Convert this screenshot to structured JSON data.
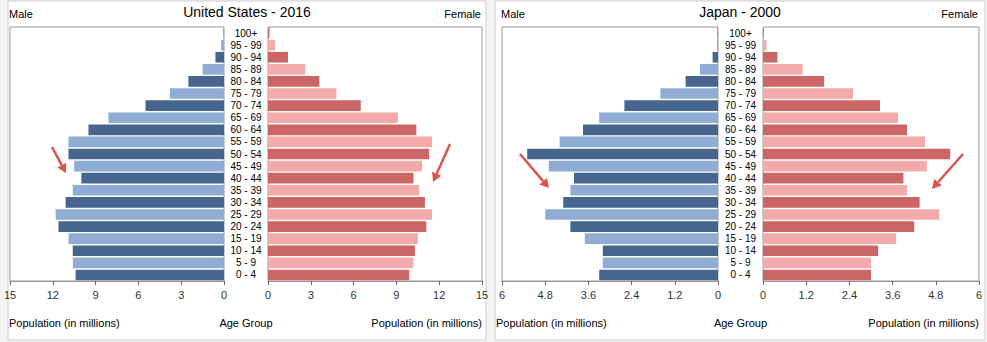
{
  "chart_data": [
    {
      "type": "bar",
      "orientation": "horizontal",
      "title": "United States - 2016",
      "x_label": "Population (in millions)",
      "y_label": "Age Group",
      "categories": [
        "0 - 4",
        "5 - 9",
        "10 - 14",
        "15 - 19",
        "20 - 24",
        "25 - 29",
        "30 - 34",
        "35 - 39",
        "40 - 44",
        "45 - 49",
        "50 - 54",
        "55 - 59",
        "60 - 64",
        "65 - 69",
        "70 - 74",
        "75 - 79",
        "80 - 84",
        "85 - 89",
        "90 - 94",
        "95 - 99",
        "100+"
      ],
      "series": [
        {
          "name": "Male",
          "colors": [
            "#466690",
            "#8fadd4",
            "#466690",
            "#8fadd4",
            "#466690",
            "#8fadd4",
            "#466690",
            "#8fadd4",
            "#466690",
            "#8fadd4",
            "#466690",
            "#8fadd4",
            "#466690",
            "#8fadd4",
            "#466690",
            "#8fadd4",
            "#466690",
            "#8fadd4",
            "#466690",
            "#8fadd4",
            "#466690"
          ],
          "values": [
            10.4,
            10.6,
            10.6,
            10.9,
            11.6,
            11.8,
            11.1,
            10.6,
            10.0,
            10.5,
            10.9,
            10.9,
            9.5,
            8.1,
            5.5,
            3.8,
            2.5,
            1.5,
            0.6,
            0.2,
            0.02
          ]
        },
        {
          "name": "Female",
          "colors": [
            "#cc6666",
            "#f2aaaa",
            "#cc6666",
            "#f2aaaa",
            "#cc6666",
            "#f2aaaa",
            "#cc6666",
            "#f2aaaa",
            "#cc6666",
            "#f2aaaa",
            "#cc6666",
            "#f2aaaa",
            "#cc6666",
            "#f2aaaa",
            "#cc6666",
            "#f2aaaa",
            "#cc6666",
            "#f2aaaa",
            "#cc6666",
            "#f2aaaa",
            "#cc6666"
          ],
          "values": [
            9.9,
            10.2,
            10.3,
            10.5,
            11.1,
            11.5,
            11.0,
            10.6,
            10.2,
            10.8,
            11.3,
            11.5,
            10.4,
            9.1,
            6.5,
            4.8,
            3.6,
            2.6,
            1.4,
            0.5,
            0.1
          ]
        }
      ],
      "xlim": [
        0,
        15
      ],
      "xticks": [
        0,
        3,
        6,
        9,
        12,
        15
      ],
      "grid": false
    },
    {
      "type": "bar",
      "orientation": "horizontal",
      "title": "Japan - 2000",
      "x_label": "Population (in millions)",
      "y_label": "Age Group",
      "categories": [
        "0 - 4",
        "5 - 9",
        "10 - 14",
        "15 - 19",
        "20 - 24",
        "25 - 29",
        "30 - 34",
        "35 - 39",
        "40 - 44",
        "45 - 49",
        "50 - 54",
        "55 - 59",
        "60 - 64",
        "65 - 69",
        "70 - 74",
        "75 - 79",
        "80 - 84",
        "85 - 89",
        "90 - 94",
        "95 - 99",
        "100+"
      ],
      "series": [
        {
          "name": "Male",
          "colors": [
            "#466690",
            "#8fadd4",
            "#466690",
            "#8fadd4",
            "#466690",
            "#8fadd4",
            "#466690",
            "#8fadd4",
            "#466690",
            "#8fadd4",
            "#466690",
            "#8fadd4",
            "#466690",
            "#8fadd4",
            "#466690",
            "#8fadd4",
            "#466690",
            "#8fadd4",
            "#466690",
            "#8fadd4",
            "#466690"
          ],
          "values": [
            3.3,
            3.2,
            3.2,
            3.7,
            4.1,
            4.8,
            4.3,
            4.1,
            4.0,
            4.7,
            5.3,
            4.4,
            3.75,
            3.3,
            2.6,
            1.6,
            0.9,
            0.5,
            0.15,
            0.03,
            0.01
          ]
        },
        {
          "name": "Female",
          "colors": [
            "#cc6666",
            "#f2aaaa",
            "#cc6666",
            "#f2aaaa",
            "#cc6666",
            "#f2aaaa",
            "#cc6666",
            "#f2aaaa",
            "#cc6666",
            "#f2aaaa",
            "#cc6666",
            "#f2aaaa",
            "#cc6666",
            "#f2aaaa",
            "#cc6666",
            "#f2aaaa",
            "#cc6666",
            "#f2aaaa",
            "#cc6666",
            "#f2aaaa",
            "#cc6666"
          ],
          "values": [
            3.0,
            3.0,
            3.2,
            3.7,
            4.2,
            4.9,
            4.35,
            4.0,
            3.9,
            4.55,
            5.2,
            4.5,
            4.0,
            3.75,
            3.25,
            2.5,
            1.7,
            1.1,
            0.4,
            0.1,
            0.02
          ]
        }
      ],
      "xlim": [
        0,
        6
      ],
      "xticks": [
        0,
        1.2,
        2.4,
        3.6,
        4.8,
        6
      ],
      "grid": false
    }
  ]
}
